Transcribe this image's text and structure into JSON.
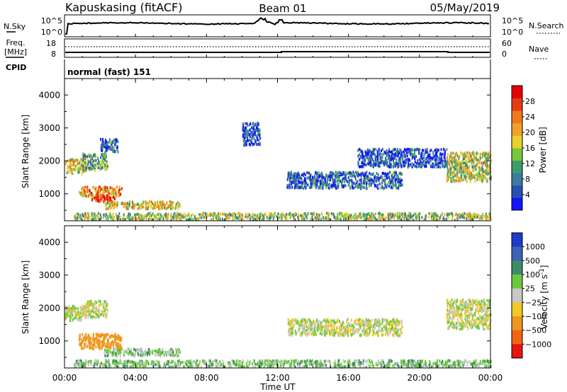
{
  "header": {
    "station": "Kapuskasing (fitACF)",
    "beam": "Beam 01",
    "date": "05/May/2019"
  },
  "noise_panel": {
    "left_label": "N.Sky",
    "right_label": "N.Search",
    "tick_top": "10^5",
    "tick_bottom": "10^0"
  },
  "freq_panel": {
    "left_label_1": "Freq.",
    "left_label_2": "[MHz]",
    "right_label": "Nave",
    "left_tick_top": "18",
    "left_tick_bottom": "8",
    "right_tick_top": "60",
    "right_tick_bottom": "0"
  },
  "cpid": {
    "label": "CPID",
    "mode": "normal (fast) 151"
  },
  "time_axis": {
    "xlabel": "Time UT",
    "ticks": [
      "00:00",
      "04:00",
      "08:00",
      "12:00",
      "16:00",
      "20:00",
      "00:00"
    ]
  },
  "chart_data": [
    {
      "type": "heatmap",
      "quantity": "Power",
      "ylabel": "Slant Range [km]",
      "xlabel": "Time UT",
      "xlim_hours": [
        0,
        24
      ],
      "ylim": [
        180,
        4500
      ],
      "y_ticks": [
        1000,
        2000,
        3000,
        4000
      ],
      "colorbar": {
        "label": "Power [dB]",
        "range": [
          0,
          32
        ],
        "ticks": [
          "4",
          "8",
          "12",
          "16",
          "20",
          "24",
          "28"
        ],
        "colors": [
          "#1414ff",
          "#2850b0",
          "#3c7aa0",
          "#3c9c6c",
          "#78c83c",
          "#e6d228",
          "#f0a02c",
          "#f0781e",
          "#e63c14",
          "#e60000"
        ]
      },
      "echo_regions": [
        {
          "t": [
            0.0,
            1.2
          ],
          "range": [
            1650,
            2100
          ],
          "level": 0.55
        },
        {
          "t": [
            1.0,
            2.4
          ],
          "range": [
            1750,
            2250
          ],
          "level": 0.35
        },
        {
          "t": [
            2.0,
            3.0
          ],
          "range": [
            2300,
            2700
          ],
          "level": 0.2
        },
        {
          "t": [
            0.8,
            3.2
          ],
          "range": [
            950,
            1250
          ],
          "level": 0.7
        },
        {
          "t": [
            1.5,
            2.8
          ],
          "range": [
            800,
            1000
          ],
          "level": 0.9
        },
        {
          "t": [
            2.2,
            6.5
          ],
          "range": [
            580,
            800
          ],
          "level": 0.6
        },
        {
          "t": [
            0.5,
            24.0
          ],
          "range": [
            250,
            450
          ],
          "level": 0.45
        },
        {
          "t": [
            10.0,
            11.0
          ],
          "range": [
            2500,
            3200
          ],
          "level": 0.15
        },
        {
          "t": [
            12.5,
            19.0
          ],
          "range": [
            1200,
            1700
          ],
          "level": 0.2
        },
        {
          "t": [
            16.5,
            21.5
          ],
          "range": [
            1850,
            2400
          ],
          "level": 0.15
        },
        {
          "t": [
            21.5,
            24.0
          ],
          "range": [
            1400,
            2300
          ],
          "level": 0.5
        }
      ]
    },
    {
      "type": "heatmap",
      "quantity": "Velocity",
      "ylabel": "Slant Range [km]",
      "xlabel": "Time UT",
      "xlim_hours": [
        0,
        24
      ],
      "ylim": [
        180,
        4500
      ],
      "y_ticks": [
        1000,
        2000,
        3000,
        4000
      ],
      "colorbar": {
        "label": "Velocity [m s^-1]",
        "ticks": [
          "1000",
          "500",
          "100",
          "25",
          "−25",
          "−100",
          "−500",
          "−1000"
        ],
        "colors": [
          "#1e3cc8",
          "#3c64b4",
          "#3c8c6c",
          "#6cc83c",
          "#c8c8c8",
          "#f0c828",
          "#f0961e",
          "#f06414",
          "#e61414"
        ]
      },
      "echo_regions": [
        {
          "t": [
            0.0,
            1.2
          ],
          "range": [
            1650,
            2100
          ],
          "velocity": 0
        },
        {
          "t": [
            1.0,
            2.4
          ],
          "range": [
            1750,
            2250
          ],
          "velocity": 0
        },
        {
          "t": [
            0.8,
            3.2
          ],
          "range": [
            800,
            1250
          ],
          "velocity": -200
        },
        {
          "t": [
            2.2,
            6.5
          ],
          "range": [
            580,
            800
          ],
          "velocity": 60
        },
        {
          "t": [
            0.5,
            24.0
          ],
          "range": [
            250,
            450
          ],
          "velocity": 60
        },
        {
          "t": [
            12.5,
            19.0
          ],
          "range": [
            1200,
            1700
          ],
          "velocity": 0
        },
        {
          "t": [
            21.5,
            24.0
          ],
          "range": [
            1400,
            2300
          ],
          "velocity": 0
        }
      ]
    }
  ]
}
